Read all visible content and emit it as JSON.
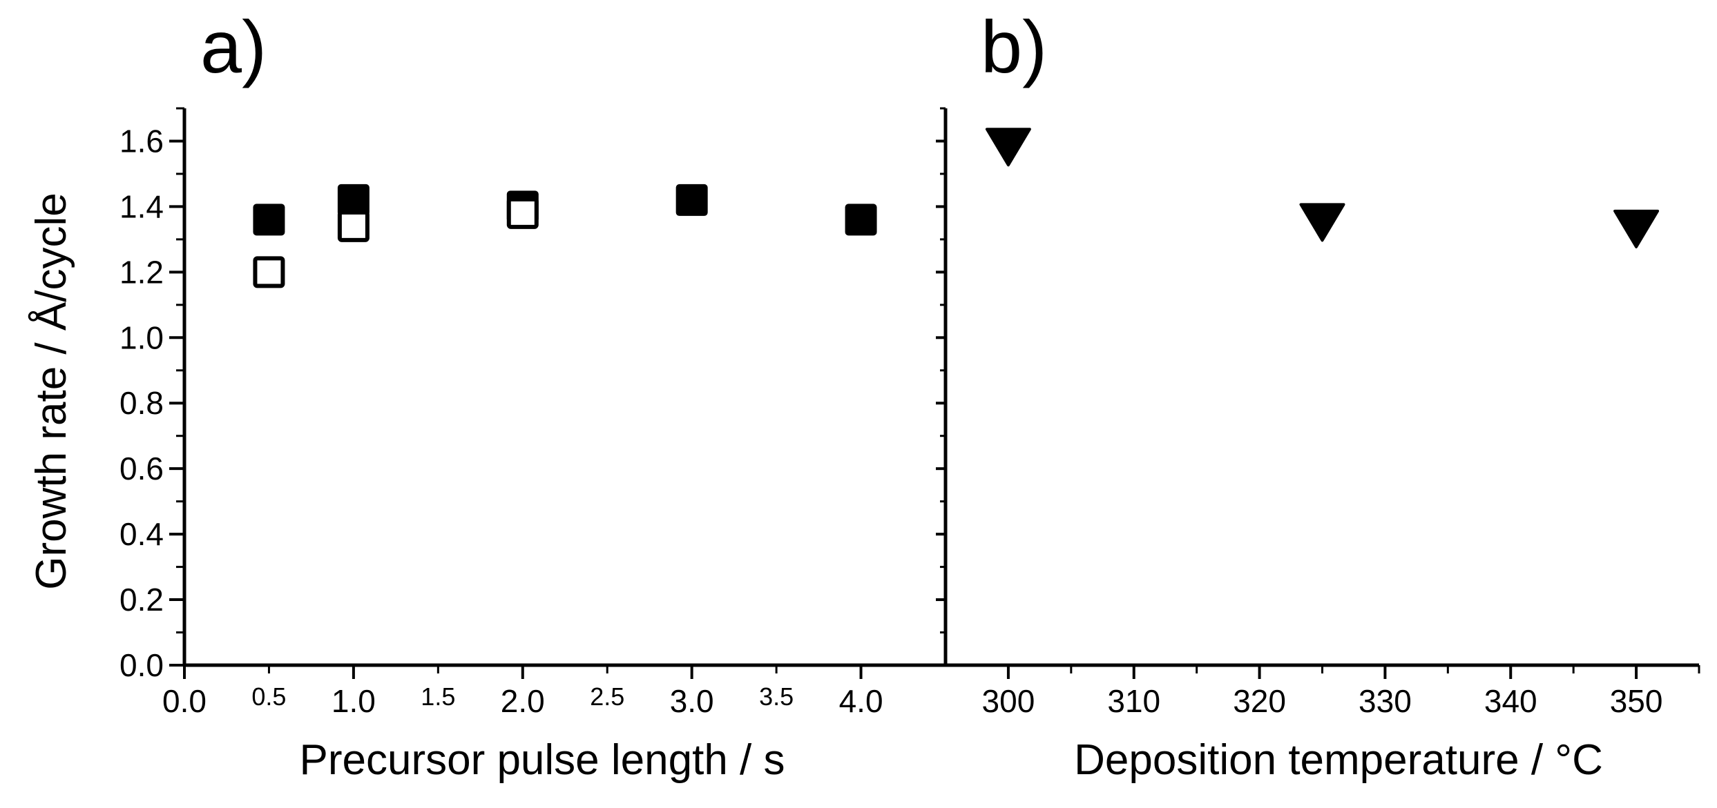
{
  "chart_data": [
    {
      "type": "scatter",
      "panel_label": "a)",
      "xlabel": "Precursor pulse length / s",
      "ylabel": "Growth rate / Å/cycle",
      "xlim": [
        0,
        4.5
      ],
      "ylim": [
        0,
        1.7
      ],
      "x_major_ticks": [
        "0.0",
        "1.0",
        "2.0",
        "3.0",
        "4.0"
      ],
      "x_major_values": [
        0,
        1,
        2,
        3,
        4
      ],
      "x_minor_ticks": [
        "0.5",
        "1.5",
        "2.5",
        "3.5"
      ],
      "x_minor_values": [
        0.5,
        1.5,
        2.5,
        3.5
      ],
      "y_ticks": [
        "0.0",
        "0.2",
        "0.4",
        "0.6",
        "0.8",
        "1.0",
        "1.2",
        "1.4",
        "1.6"
      ],
      "y_values": [
        0,
        0.2,
        0.4,
        0.6,
        0.8,
        1.0,
        1.2,
        1.4,
        1.6
      ],
      "grid": false,
      "series": [
        {
          "marker": "filled-square",
          "color": "#000000",
          "x": [
            0.5,
            1.0,
            2.0,
            3.0,
            4.0
          ],
          "y": [
            1.36,
            1.42,
            1.4,
            1.42,
            1.36
          ]
        },
        {
          "marker": "open-square",
          "color": "#000000",
          "x": [
            0.5,
            1.0,
            2.0
          ],
          "y": [
            1.2,
            1.34,
            1.38
          ]
        }
      ]
    },
    {
      "type": "scatter",
      "panel_label": "b)",
      "xlabel": "Deposition temperature / °C",
      "xlim": [
        295,
        355
      ],
      "ylim": [
        0,
        1.7
      ],
      "x_ticks": [
        "300",
        "310",
        "320",
        "330",
        "340",
        "350"
      ],
      "x_values": [
        300,
        310,
        320,
        330,
        340,
        350
      ],
      "grid": false,
      "series": [
        {
          "marker": "filled-triangle-down",
          "color": "#000000",
          "x": [
            300,
            325,
            350
          ],
          "y": [
            1.59,
            1.36,
            1.34
          ]
        }
      ]
    }
  ]
}
